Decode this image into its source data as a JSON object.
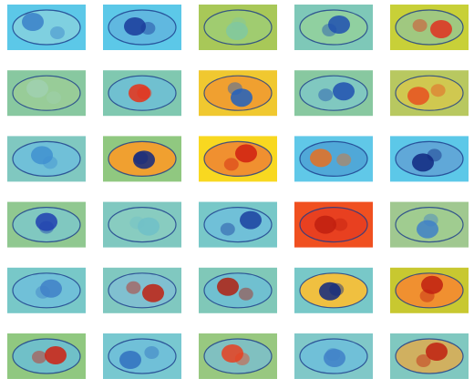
{
  "panels": [
    {
      "background": "#5cc8e8",
      "inside": "#7fd0e0",
      "blob": "#3a80c8"
    },
    {
      "background": "#5cc8e8",
      "inside": "#60b8e0",
      "blob": "#1a3a9a"
    },
    {
      "background": "#a8c858",
      "inside": "#a0cc70",
      "blob": "#80c8a0"
    },
    {
      "background": "#7ec8b8",
      "inside": "#90d0a0",
      "blob": "#2050b0"
    },
    {
      "background": "#c8d038",
      "inside": "#a0c880",
      "blob": "#e03020"
    },
    {
      "background": "#88c8a0",
      "inside": "#98cc98",
      "blob": "#a0d0b0"
    },
    {
      "background": "#80c8b0",
      "inside": "#70c0d0",
      "blob": "#e83018"
    },
    {
      "background": "#f0c830",
      "inside": "#f0a030",
      "blob": "#2060c0"
    },
    {
      "background": "#88c8a0",
      "inside": "#80c8c0",
      "blob": "#2050b0"
    },
    {
      "background": "#b8c860",
      "inside": "#d0c850",
      "blob": "#e85020"
    },
    {
      "background": "#80c8c0",
      "inside": "#70c0d8",
      "blob": "#4090d0"
    },
    {
      "background": "#90c880",
      "inside": "#f0a030",
      "blob": "#102880"
    },
    {
      "background": "#f8d820",
      "inside": "#f09030",
      "blob": "#d02010"
    },
    {
      "background": "#60c8e8",
      "inside": "#50a8d8",
      "blob": "#e87020"
    },
    {
      "background": "#5cc8e8",
      "inside": "#60a8d8",
      "blob": "#102880"
    },
    {
      "background": "#90c890",
      "inside": "#80c8c0",
      "blob": "#2040b0"
    },
    {
      "background": "#80c8c0",
      "inside": "#88ccc0",
      "blob": "#70c0c8"
    },
    {
      "background": "#78c8c8",
      "inside": "#70c0d8",
      "blob": "#1a40a0"
    },
    {
      "background": "#f05020",
      "inside": "#e84020",
      "blob": "#c02010"
    },
    {
      "background": "#a0c890",
      "inside": "#a0cc90",
      "blob": "#4080c8"
    },
    {
      "background": "#78c8c8",
      "inside": "#70c0d8",
      "blob": "#4080c8"
    },
    {
      "background": "#80c8c0",
      "inside": "#80c0d0",
      "blob": "#c02010"
    },
    {
      "background": "#80c8b8",
      "inside": "#70c0d0",
      "blob": "#b02010"
    },
    {
      "background": "#78c8c8",
      "inside": "#f0c040",
      "blob": "#102880"
    },
    {
      "background": "#c8c830",
      "inside": "#f09030",
      "blob": "#c02010"
    },
    {
      "background": "#90c880",
      "inside": "#70c0c8",
      "blob": "#d02010"
    },
    {
      "background": "#78c8d0",
      "inside": "#70c0d8",
      "blob": "#3070c0"
    },
    {
      "background": "#98c880",
      "inside": "#80c0c0",
      "blob": "#e84020"
    },
    {
      "background": "#80c8c8",
      "inside": "#70c0d8",
      "blob": "#4080c8"
    },
    {
      "background": "#80c8c0",
      "inside": "#d0b060",
      "blob": "#c02010"
    }
  ]
}
